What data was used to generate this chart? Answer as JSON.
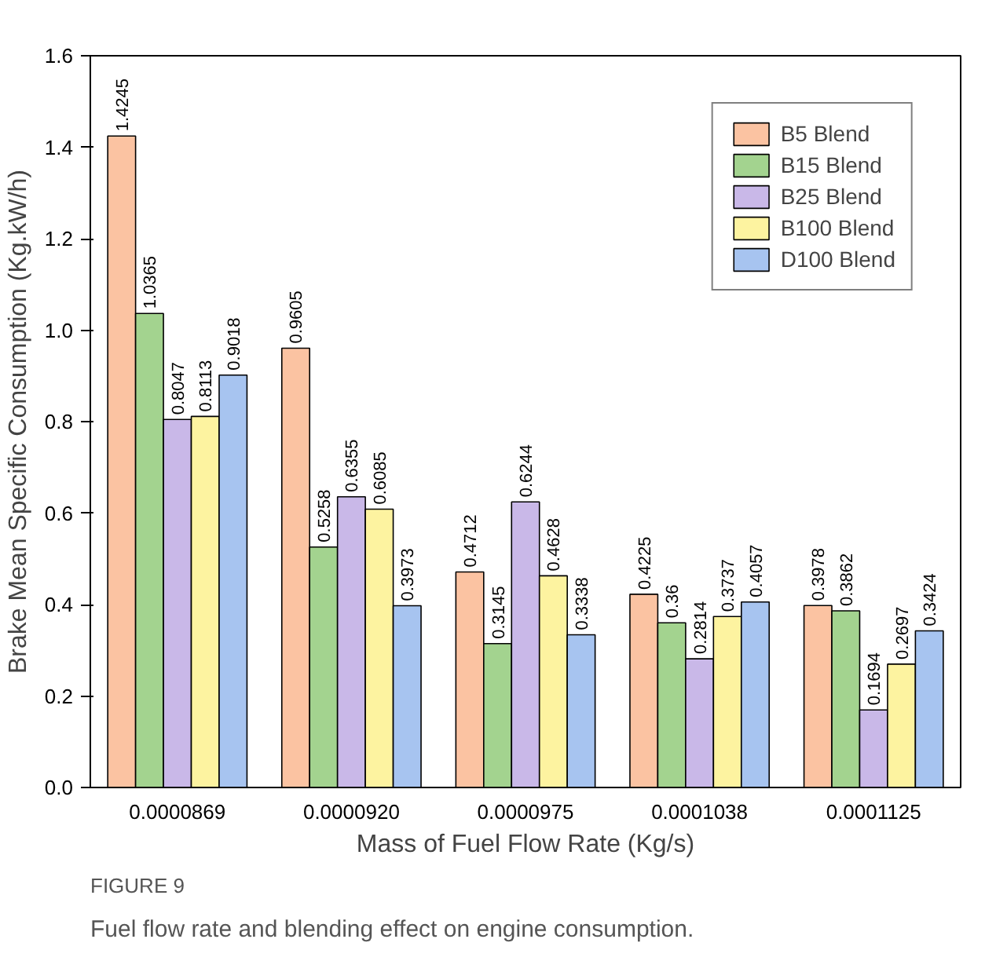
{
  "chart_data": {
    "type": "bar",
    "xlabel": "Mass of Fuel Flow Rate (Kg/s)",
    "ylabel": "Brake Mean Specific Consumption (Kg.kW/h)",
    "categories": [
      "0.0000869",
      "0.0000920",
      "0.0000975",
      "0.0001038",
      "0.0001125"
    ],
    "series": [
      {
        "name": "B5 Blend",
        "color": "#fbc3a2",
        "values": [
          1.4245,
          0.9605,
          0.4712,
          0.4225,
          0.3978
        ]
      },
      {
        "name": "B15 Blend",
        "color": "#a3d38f",
        "values": [
          1.0365,
          0.5258,
          0.3145,
          0.36,
          0.3862
        ]
      },
      {
        "name": "B25 Blend",
        "color": "#c9b8e8",
        "values": [
          0.8047,
          0.6355,
          0.6244,
          0.2814,
          0.1694
        ]
      },
      {
        "name": "B100 Blend",
        "color": "#fdf3a0",
        "values": [
          0.8113,
          0.6085,
          0.4628,
          0.3737,
          0.2697
        ]
      },
      {
        "name": "D100 Blend",
        "color": "#a7c4f0",
        "values": [
          0.9018,
          0.3973,
          0.3338,
          0.4057,
          0.3424
        ]
      }
    ],
    "ylim": [
      0,
      1.6
    ],
    "yticks": [
      {
        "value": 0,
        "label": "0.0"
      },
      {
        "value": 0.2,
        "label": "0.2"
      },
      {
        "value": 0.4,
        "label": "0.4"
      },
      {
        "value": 0.6,
        "label": "0.6"
      },
      {
        "value": 0.8,
        "label": "0.8"
      },
      {
        "value": 1.0,
        "label": "1.0"
      },
      {
        "value": 1.2,
        "label": "1.2"
      },
      {
        "value": 1.4,
        "label": "1.4"
      },
      {
        "value": 1.6,
        "label": "1.6"
      }
    ],
    "data_labels": true,
    "legend": "top right",
    "grid": false,
    "annotations": [
      "FIGURE 9",
      "Fuel flow rate and blending effect on engine consumption."
    ]
  }
}
